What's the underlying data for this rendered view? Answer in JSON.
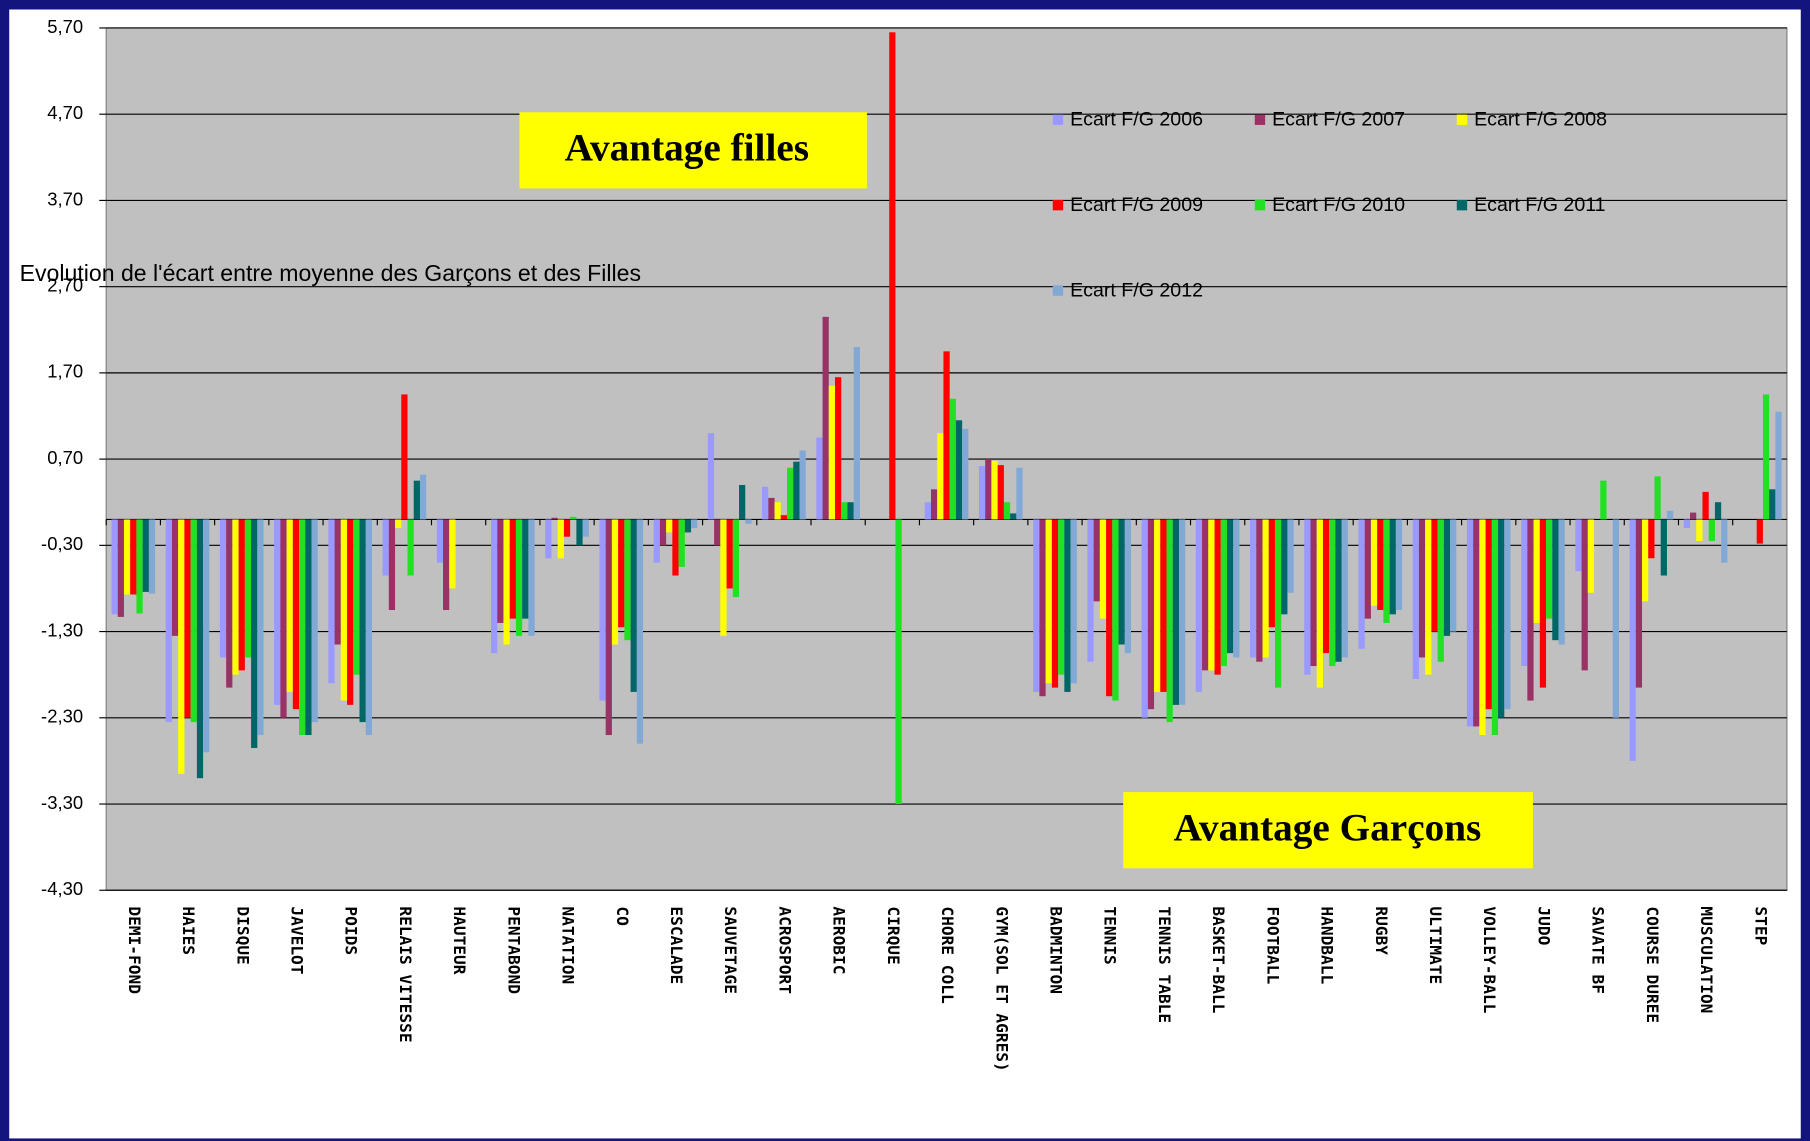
{
  "chart_data": {
    "type": "bar",
    "title": "Evolution de l'écart entre moyenne des Garçons et des Filles",
    "annotations": [
      "Avantage filles",
      "Avantage Garçons"
    ],
    "categories": [
      "DEMI-FOND",
      "HAIES",
      "DISQUE",
      "JAVELOT",
      "POIDS",
      "RELAIS VITESSE",
      "HAUTEUR",
      "PENTABOND",
      "NATATION",
      "CO",
      "ESCALADE",
      "SAUVETAGE",
      "ACROSPORT",
      "AEROBIC",
      "CIRQUE",
      "CHORE COLL",
      "GYM(SOL ET AGRES)",
      "BADMINTON",
      "TENNIS",
      "TENNIS TABLE",
      "BASKET-BALL",
      "FOOTBALL",
      "HANDBALL",
      "RUGBY",
      "ULTIMATE",
      "VOLLEY-BALL",
      "JUDO",
      "SAVATE BF",
      "COURSE DUREE",
      "MUSCULATION",
      "STEP"
    ],
    "series": [
      {
        "name": "Ecart F/G 2006",
        "color": "#9999ff",
        "values": [
          -1.1,
          -2.35,
          -1.6,
          -2.15,
          -1.9,
          -0.65,
          -0.5,
          -1.55,
          -0.45,
          -2.1,
          -0.5,
          1.0,
          0.38,
          0.95,
          null,
          0.2,
          0.62,
          -2.0,
          -1.65,
          -2.3,
          -2.0,
          -1.6,
          -1.8,
          -1.5,
          -1.85,
          -2.4,
          -1.7,
          -0.6,
          -2.8,
          -0.1,
          null
        ]
      },
      {
        "name": "Ecart F/G 2007",
        "color": "#993366",
        "values": [
          -1.13,
          -1.35,
          -1.95,
          -2.3,
          -1.45,
          -1.05,
          -1.05,
          -1.2,
          0.02,
          -2.5,
          -0.3,
          -0.3,
          0.25,
          2.35,
          null,
          0.35,
          0.7,
          -2.05,
          -0.95,
          -2.2,
          -1.75,
          -1.65,
          -1.7,
          -1.15,
          -1.6,
          -2.4,
          -2.1,
          -1.75,
          -1.95,
          0.08,
          null
        ]
      },
      {
        "name": "Ecart F/G 2008",
        "color": "#ffff00",
        "values": [
          -0.87,
          -2.95,
          -1.8,
          -2.0,
          -2.1,
          -0.1,
          -0.8,
          -1.45,
          -0.45,
          -1.45,
          -0.15,
          -1.35,
          0.2,
          1.55,
          null,
          1.0,
          0.68,
          -1.9,
          -1.15,
          -2.0,
          -1.75,
          -1.6,
          -1.95,
          -1.0,
          -1.8,
          -2.5,
          -1.2,
          -0.85,
          -0.95,
          -0.25,
          null
        ]
      },
      {
        "name": "Ecart F/G 2009",
        "color": "#ff0000",
        "values": [
          -0.87,
          -2.3,
          -1.75,
          -2.2,
          -2.15,
          1.45,
          null,
          -1.15,
          -0.2,
          -1.25,
          -0.65,
          -0.8,
          0.05,
          1.65,
          5.65,
          1.95,
          0.63,
          -1.95,
          -2.05,
          -2.0,
          -1.8,
          -1.25,
          -1.55,
          -1.05,
          -1.3,
          -2.2,
          -1.95,
          null,
          -0.45,
          0.32,
          -0.28
        ]
      },
      {
        "name": "Ecart F/G 2010",
        "color": "#22e022",
        "values": [
          -1.09,
          -2.35,
          -1.6,
          -2.5,
          -1.8,
          -0.65,
          null,
          -1.35,
          0.03,
          -1.4,
          -0.55,
          -0.9,
          0.6,
          0.2,
          -3.3,
          1.4,
          0.2,
          -1.8,
          -2.1,
          -2.35,
          -1.7,
          -1.95,
          -1.7,
          -1.2,
          -1.65,
          -2.5,
          -1.15,
          0.45,
          0.5,
          -0.25,
          1.45
        ]
      },
      {
        "name": "Ecart F/G 2011",
        "color": "#006666",
        "values": [
          -0.84,
          -3.0,
          -2.65,
          -2.5,
          -2.35,
          0.45,
          null,
          -1.15,
          -0.3,
          -2.0,
          -0.15,
          0.4,
          0.67,
          0.2,
          null,
          1.15,
          0.07,
          -2.0,
          -1.45,
          -2.15,
          -1.55,
          -1.1,
          -1.65,
          -1.1,
          -1.35,
          -2.3,
          -1.4,
          null,
          -0.65,
          0.2,
          0.35
        ]
      },
      {
        "name": "Ecart F/G 2012",
        "color": "#82a8d6",
        "values": [
          -0.86,
          -2.7,
          -2.5,
          -2.35,
          -2.5,
          0.52,
          null,
          -1.35,
          -0.2,
          -2.6,
          -0.1,
          -0.05,
          0.8,
          2.0,
          null,
          1.05,
          0.6,
          -1.9,
          -1.55,
          -2.15,
          -1.6,
          -0.85,
          -1.6,
          -1.05,
          -1.3,
          -2.2,
          -1.45,
          -2.3,
          0.1,
          -0.5,
          1.25
        ]
      }
    ],
    "ylim": [
      -4.3,
      5.7
    ],
    "yticks": [
      {
        "value": 5.7,
        "label": "5,70"
      },
      {
        "value": 4.7,
        "label": "4,70"
      },
      {
        "value": 3.7,
        "label": "3,70"
      },
      {
        "value": 2.7,
        "label": "2,70"
      },
      {
        "value": 1.7,
        "label": "1,70"
      },
      {
        "value": 0.7,
        "label": "0,70"
      },
      {
        "value": -0.3,
        "label": "-0,30"
      },
      {
        "value": -1.3,
        "label": "-1,30"
      },
      {
        "value": -2.3,
        "label": "-2,30"
      },
      {
        "value": -3.3,
        "label": "-3,30"
      },
      {
        "value": -4.3,
        "label": "-4,30"
      }
    ],
    "grid": true
  }
}
